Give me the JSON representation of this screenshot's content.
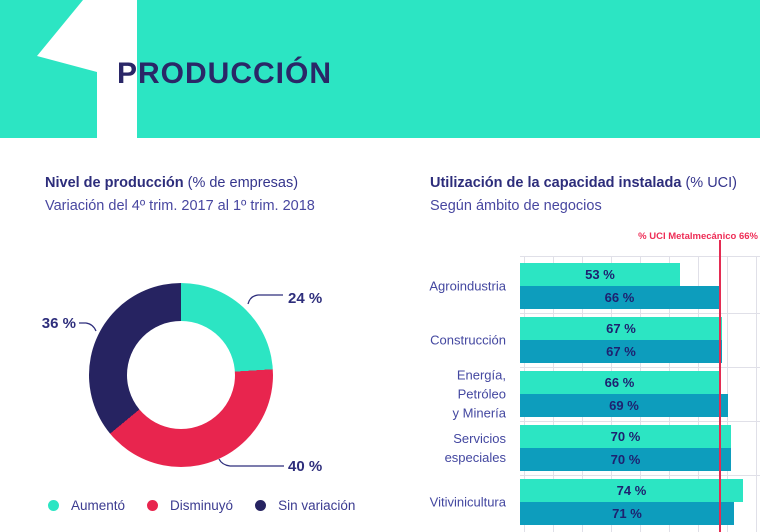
{
  "header": {
    "number": "1",
    "title": "PRODUCCIÓN"
  },
  "colors": {
    "teal": "#2CE5C3",
    "cyan": "#0D9DBD",
    "navy": "#262361",
    "red": "#E8254E",
    "reference_red": "#E42B52",
    "grid": "#E0E0E8",
    "heading_navy": "#2D2D7B",
    "text_purple": "#4847A0"
  },
  "donut_section": {
    "title_bold": "Nivel de producción",
    "title_normal": " (% de empresas)",
    "subtitle": "Variación del 4º trim. 2017 al 1º trim. 2018"
  },
  "bars_section": {
    "title_bold": "Utilización de la capacidad instalada",
    "title_normal": " (% UCI)",
    "subtitle": "Según ámbito de negocios"
  },
  "chart_data": [
    {
      "type": "pie",
      "donut": true,
      "title": "Nivel de producción (% de empresas)",
      "subtitle": "Variación del 4º trim. 2017 al 1º trim. 2018",
      "start_angle_deg": 0,
      "direction": "clockwise",
      "slices": [
        {
          "label": "Aumentó",
          "value": 24,
          "display": "24 %",
          "color": "#2CE5C3"
        },
        {
          "label": "Disminuyó",
          "value": 40,
          "display": "40 %",
          "color": "#E8254E"
        },
        {
          "label": "Sin variación",
          "value": 36,
          "display": "36 %",
          "color": "#262361"
        }
      ],
      "legend_position": "bottom"
    },
    {
      "type": "bar",
      "orientation": "horizontal",
      "title": "Utilización de la capacidad instalada (% UCI)",
      "subtitle": "Según ámbito de negocios",
      "categories": [
        "Agroindustria",
        "Construcción",
        "Energía,\nPetróleo\ny Minería",
        "Servicios\nespeciales",
        "Vitivinicultura"
      ],
      "series": [
        {
          "name": "serie-superior",
          "color": "#2CE5C3",
          "values": [
            53,
            67,
            66,
            70,
            74
          ]
        },
        {
          "name": "serie-inferior",
          "color": "#0D9DBD",
          "values": [
            66,
            67,
            69,
            70,
            71
          ]
        }
      ],
      "value_suffix": " %",
      "xlim": [
        0,
        80
      ],
      "grid": true,
      "reference_line": {
        "label": "% UCI Metalmecánico 66%",
        "value": 66,
        "color": "#E42B52"
      }
    }
  ]
}
